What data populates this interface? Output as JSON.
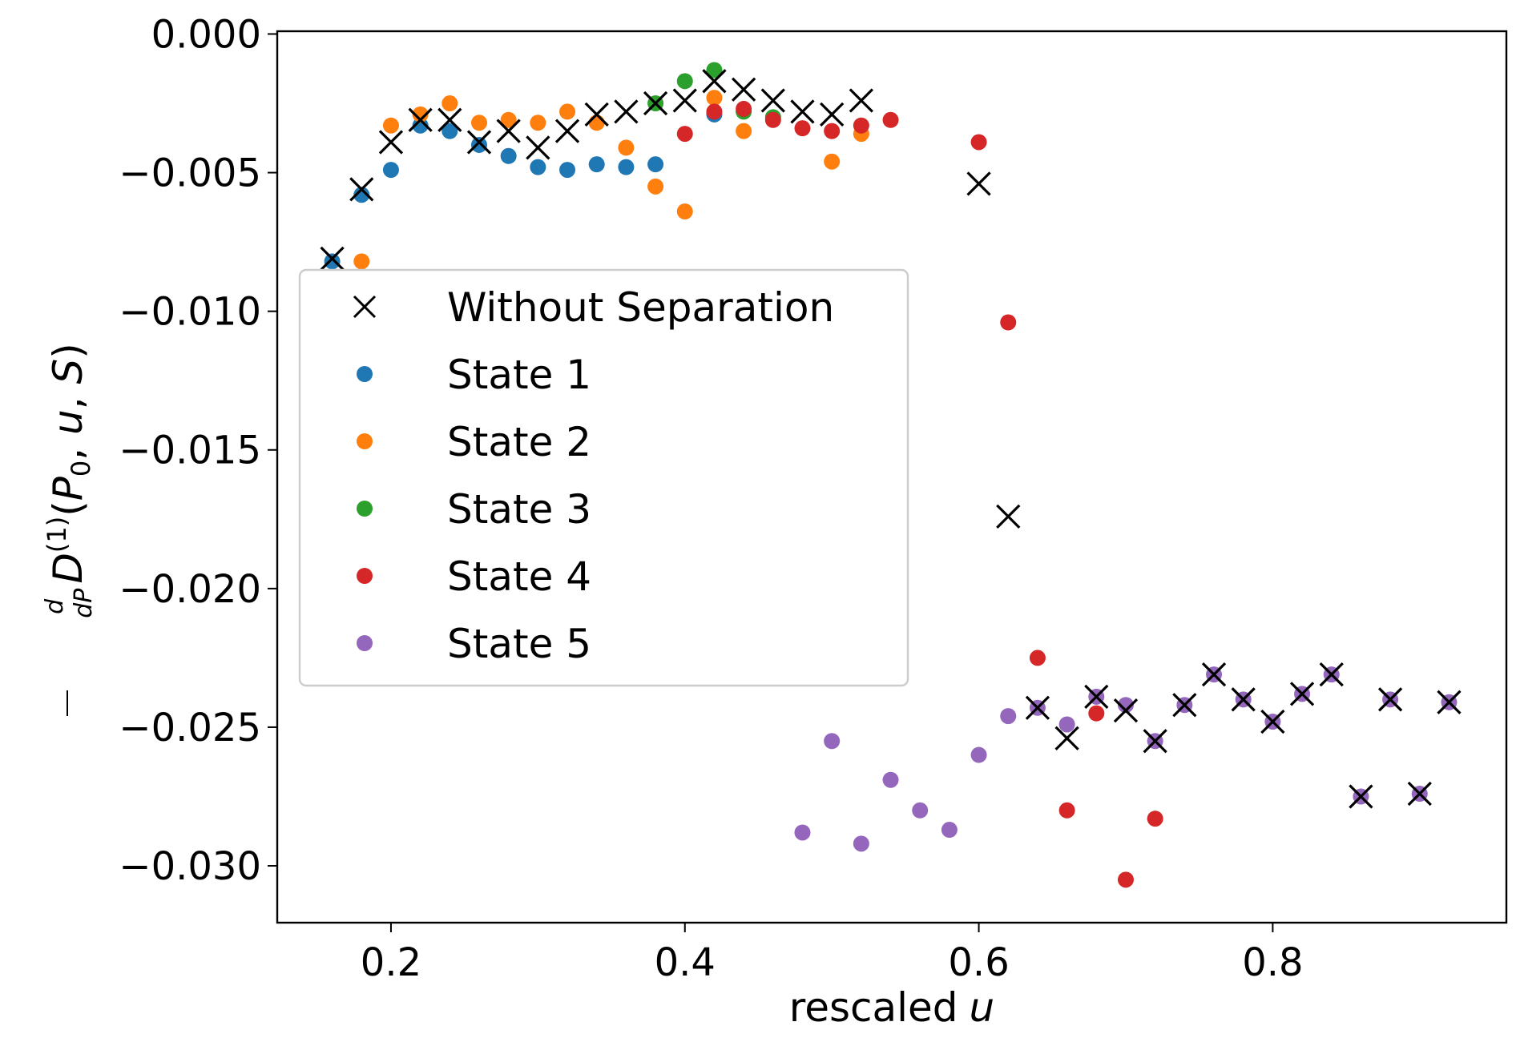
{
  "chart_data": {
    "type": "scatter",
    "title": "",
    "xlabel": "rescaled",
    "xlabel_var": "u",
    "ylabel": "d/dP D^(1)(P_0, u, S)",
    "xlim": [
      0.1226,
      0.959
    ],
    "ylim": [
      -0.03205,
      0.0001
    ],
    "xticks": [
      0.2,
      0.4,
      0.6,
      0.8
    ],
    "xtick_labels": [
      "0.2",
      "0.4",
      "0.6",
      "0.8"
    ],
    "yticks": [
      0.0,
      -0.005,
      -0.01,
      -0.015,
      -0.02,
      -0.025,
      -0.03
    ],
    "ytick_labels": [
      "0.000",
      "−0.005",
      "−0.010",
      "−0.015",
      "−0.020",
      "−0.025",
      "−0.030"
    ],
    "grid": false,
    "legend_position": "center-left",
    "series": [
      {
        "name": "Without Separation",
        "marker": "x",
        "color": "#000000",
        "x": [
          0.16,
          0.18,
          0.2,
          0.22,
          0.24,
          0.26,
          0.28,
          0.3,
          0.32,
          0.34,
          0.36,
          0.38,
          0.4,
          0.42,
          0.44,
          0.46,
          0.48,
          0.5,
          0.52,
          0.6,
          0.62,
          0.64,
          0.66,
          0.68,
          0.7,
          0.72,
          0.74,
          0.76,
          0.78,
          0.8,
          0.82,
          0.84,
          0.86,
          0.88,
          0.9,
          0.92
        ],
        "y": [
          -0.0081,
          -0.0056,
          -0.0039,
          -0.0031,
          -0.0031,
          -0.0039,
          -0.0035,
          -0.0041,
          -0.0035,
          -0.0029,
          -0.0028,
          -0.0025,
          -0.0024,
          -0.0017,
          -0.002,
          -0.0024,
          -0.0028,
          -0.0029,
          -0.0024,
          -0.0054,
          -0.0174,
          -0.0243,
          -0.0254,
          -0.0239,
          -0.0244,
          -0.0255,
          -0.0242,
          -0.0231,
          -0.024,
          -0.0248,
          -0.0238,
          -0.0231,
          -0.0275,
          -0.024,
          -0.0274,
          -0.0241
        ]
      },
      {
        "name": "State 1",
        "marker": "o",
        "color": "#1f77b4",
        "x": [
          0.16,
          0.18,
          0.2,
          0.22,
          0.24,
          0.26,
          0.28,
          0.3,
          0.32,
          0.34,
          0.36,
          0.38,
          0.42
        ],
        "y": [
          -0.0082,
          -0.0058,
          -0.0049,
          -0.0033,
          -0.0035,
          -0.004,
          -0.0044,
          -0.0048,
          -0.0049,
          -0.0047,
          -0.0048,
          -0.0047,
          -0.0029
        ]
      },
      {
        "name": "State 2",
        "marker": "o",
        "color": "#ff7f0e",
        "x": [
          0.18,
          0.2,
          0.22,
          0.24,
          0.26,
          0.28,
          0.3,
          0.32,
          0.34,
          0.36,
          0.38,
          0.4,
          0.42,
          0.44,
          0.5,
          0.52
        ],
        "y": [
          -0.0082,
          -0.0033,
          -0.0029,
          -0.0025,
          -0.0032,
          -0.0031,
          -0.0032,
          -0.0028,
          -0.0032,
          -0.0041,
          -0.0055,
          -0.0064,
          -0.0023,
          -0.0035,
          -0.0046,
          -0.0036
        ]
      },
      {
        "name": "State 3",
        "marker": "o",
        "color": "#2ca02c",
        "x": [
          0.38,
          0.4,
          0.42,
          0.44,
          0.46
        ],
        "y": [
          -0.0025,
          -0.0017,
          -0.0013,
          -0.0028,
          -0.003
        ]
      },
      {
        "name": "State 4",
        "marker": "o",
        "color": "#d62728",
        "x": [
          0.4,
          0.42,
          0.44,
          0.46,
          0.48,
          0.5,
          0.52,
          0.54,
          0.6,
          0.62,
          0.64,
          0.66,
          0.68,
          0.7,
          0.72
        ],
        "y": [
          -0.0036,
          -0.0028,
          -0.0027,
          -0.0031,
          -0.0034,
          -0.0035,
          -0.0033,
          -0.0031,
          -0.0039,
          -0.0104,
          -0.0225,
          -0.028,
          -0.0245,
          -0.0305,
          -0.0283
        ]
      },
      {
        "name": "State 5",
        "marker": "o",
        "color": "#9467bd",
        "x": [
          0.48,
          0.5,
          0.52,
          0.54,
          0.56,
          0.58,
          0.6,
          0.62,
          0.64,
          0.66,
          0.68,
          0.7,
          0.72,
          0.74,
          0.76,
          0.78,
          0.8,
          0.82,
          0.84,
          0.86,
          0.88,
          0.9,
          0.92
        ],
        "y": [
          -0.0288,
          -0.0255,
          -0.0292,
          -0.0269,
          -0.028,
          -0.0287,
          -0.026,
          -0.0246,
          -0.0243,
          -0.0249,
          -0.0239,
          -0.0242,
          -0.0255,
          -0.0242,
          -0.0231,
          -0.024,
          -0.0248,
          -0.0238,
          -0.0231,
          -0.0275,
          -0.024,
          -0.0274,
          -0.0241
        ]
      }
    ],
    "draw_order": [
      "State 1",
      "State 2",
      "State 3",
      "State 4",
      "State 5",
      "Without Separation"
    ]
  }
}
